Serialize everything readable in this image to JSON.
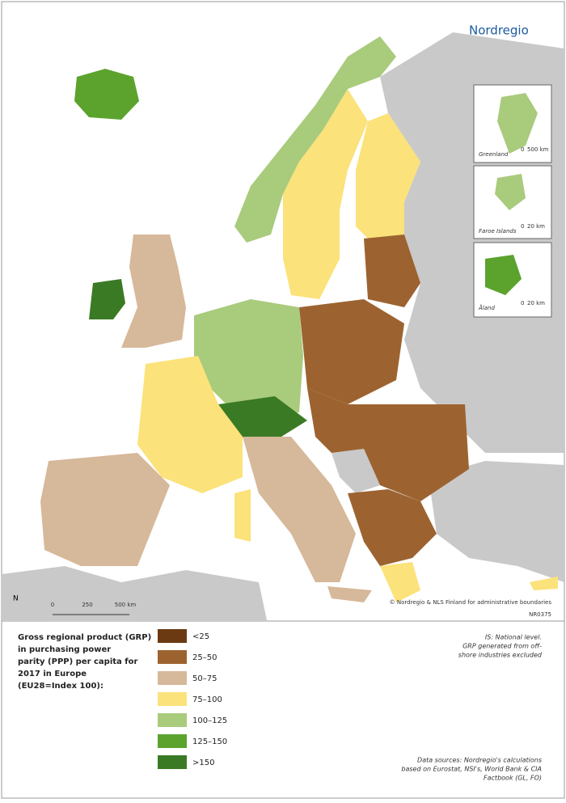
{
  "logo": "Nordregio",
  "insets": [
    {
      "label": "Greenland",
      "scale": [
        "0",
        "500 km"
      ]
    },
    {
      "label": "Faroe Islands",
      "scale": [
        "0",
        "20 km"
      ]
    },
    {
      "label": "Åland",
      "scale": [
        "0",
        "20 km"
      ]
    }
  ],
  "north": "N",
  "scale_bar": [
    "0",
    "250",
    "500 km"
  ],
  "credit": "© Nordregio & NLS Finland for administrative boundaries",
  "map_id": "NR0375",
  "legend": {
    "title": [
      "Gross regional product (GRP)",
      "in purchasing power",
      "parity (PPP) per capita for",
      "2017 in Europe",
      "(EU28=Index 100):"
    ],
    "items": [
      {
        "label": "<25",
        "color": "#6b3a12"
      },
      {
        "label": "25–50",
        "color": "#9c6330"
      },
      {
        "label": "50–75",
        "color": "#d6b89a"
      },
      {
        "label": "75–100",
        "color": "#fbe27a"
      },
      {
        "label": "100–125",
        "color": "#a9cb7c"
      },
      {
        "label": "125–150",
        "color": "#5ba32d"
      },
      {
        "label": ">150",
        "color": "#3a7a24"
      }
    ]
  },
  "notes": [
    "IS: National level.",
    "GRP generated from off-",
    "shore industries excluded"
  ],
  "sources": [
    "Data sources: Nordregio's calculations",
    "based on Eurostat, NSI's, World Bank & CIA",
    "Factbook (GL, FO)"
  ]
}
